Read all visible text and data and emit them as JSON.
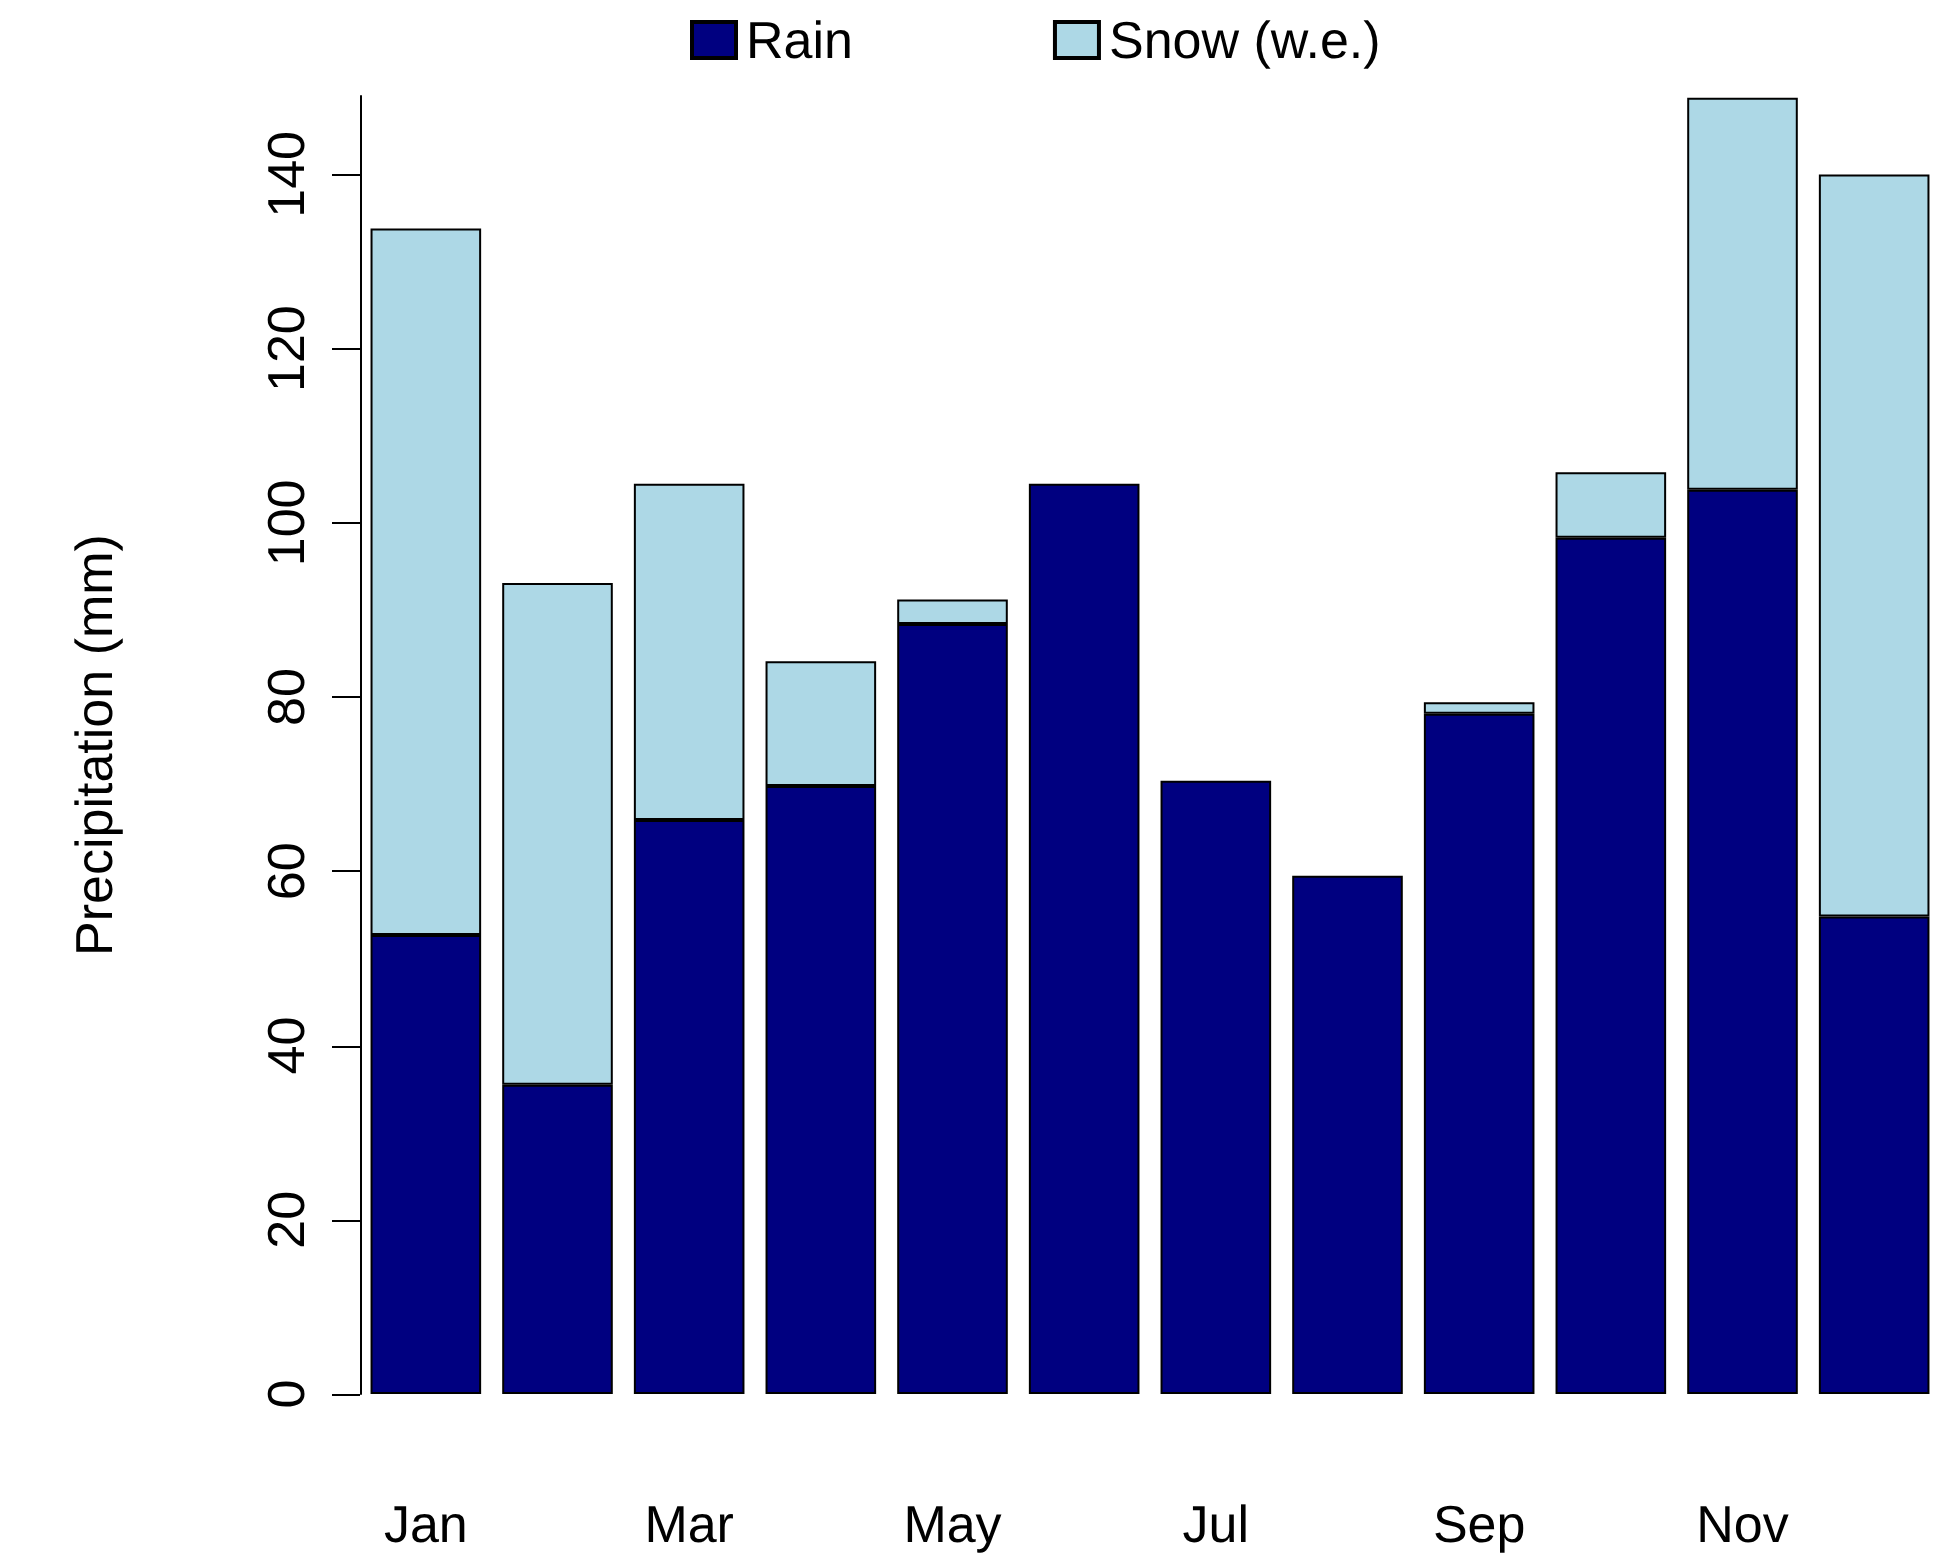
{
  "chart_data": {
    "type": "bar",
    "ylabel": "Precipitation (mm)",
    "categories": [
      "Jan",
      null,
      "Mar",
      null,
      "May",
      null,
      "Jul",
      null,
      "Sep",
      null,
      "Nov",
      null
    ],
    "stacked": true,
    "series": [
      {
        "name": "Rain",
        "color": "#000080",
        "values": [
          52.7,
          35.5,
          65.9,
          69.8,
          88.4,
          104.5,
          70.4,
          59.5,
          78.1,
          98.3,
          103.8,
          54.8
        ]
      },
      {
        "name": "Snow (w.e.)",
        "color": "#add8e6",
        "values": [
          81.1,
          57.6,
          38.6,
          14.3,
          2.8,
          null,
          0,
          0,
          1.3,
          7.5,
          45,
          85.2
        ]
      }
    ],
    "ylim": [
      0,
      149
    ],
    "yticks": [
      0,
      20,
      40,
      60,
      80,
      100,
      120,
      140
    ],
    "grid": false,
    "legend": "top"
  }
}
